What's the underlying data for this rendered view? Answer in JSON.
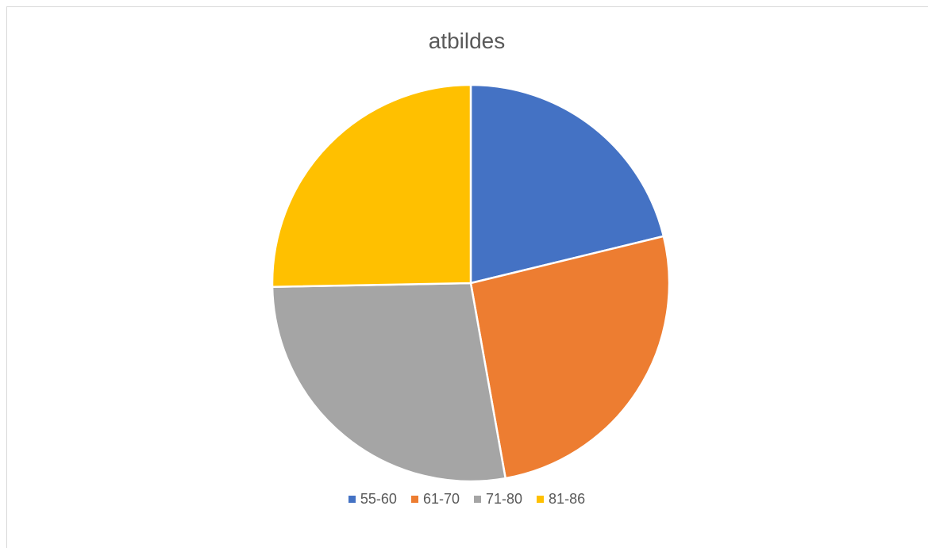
{
  "chart_data": {
    "type": "pie",
    "title": "atbildes",
    "categories": [
      "55-60",
      "61-70",
      "71-80",
      "81-86"
    ],
    "values": [
      21.2,
      26.0,
      27.5,
      25.3
    ],
    "colors": [
      "#4472C4",
      "#ED7D31",
      "#A5A5A5",
      "#FFC000"
    ],
    "start_angle_deg": 0,
    "direction": "clockwise",
    "legend_position": "bottom"
  }
}
